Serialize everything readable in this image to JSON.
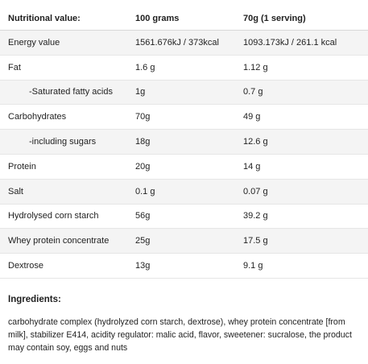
{
  "table": {
    "headers": {
      "col1": "Nutritional value:",
      "col2": "100 grams",
      "col3": "70g (1 serving)"
    },
    "rows": [
      {
        "label": "Energy value",
        "per100": "1561.676kJ / 373kcal",
        "perServing": "1093.173kJ / 261.1 kcal",
        "indent": false
      },
      {
        "label": "Fat",
        "per100": "1.6 g",
        "perServing": "1.12 g",
        "indent": false
      },
      {
        "label": "-Saturated fatty acids",
        "per100": "1g",
        "perServing": "0.7 g",
        "indent": true
      },
      {
        "label": "Carbohydrates",
        "per100": "70g",
        "perServing": "49 g",
        "indent": false
      },
      {
        "label": "-including sugars",
        "per100": "18g",
        "perServing": "12.6 g",
        "indent": true
      },
      {
        "label": "Protein",
        "per100": "20g",
        "perServing": "14 g",
        "indent": false
      },
      {
        "label": "Salt",
        "per100": "0.1 g",
        "perServing": "0.07 g",
        "indent": false
      },
      {
        "label": "Hydrolysed corn starch",
        "per100": "56g",
        "perServing": "39.2 g",
        "indent": false
      },
      {
        "label": "Whey protein concentrate",
        "per100": "25g",
        "perServing": "17.5 g",
        "indent": false
      },
      {
        "label": "Dextrose",
        "per100": "13g",
        "perServing": "9.1 g",
        "indent": false
      }
    ]
  },
  "ingredients": {
    "title": "Ingredients:",
    "text": "carbohydrate complex (hydrolyzed corn starch, dextrose), whey protein concentrate [from milk], stabilizer E414, acidity regulator: malic acid, flavor, sweetener: sucralose, the product may contain soy, eggs and nuts"
  }
}
